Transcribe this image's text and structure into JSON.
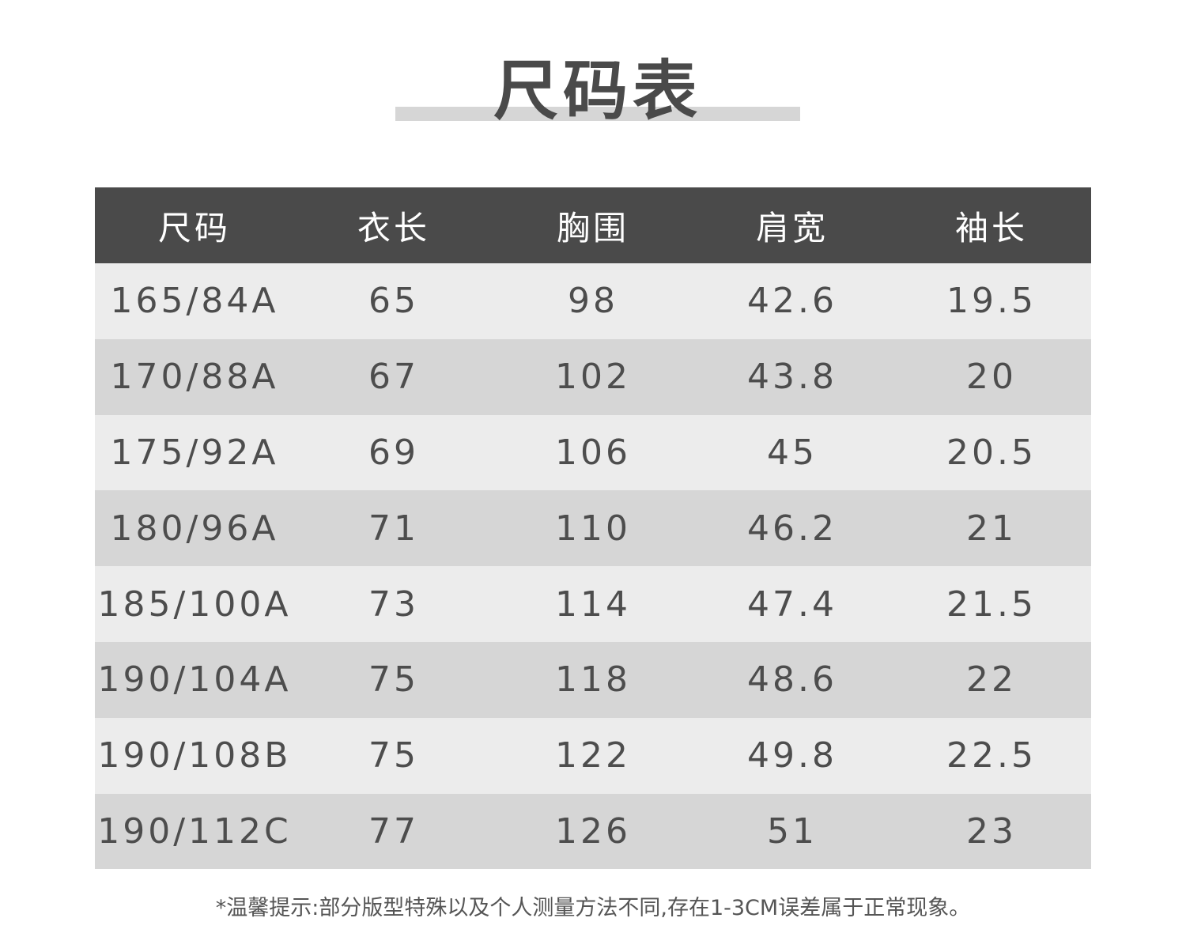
{
  "title": "尺码表",
  "table": {
    "headers": [
      "尺码",
      "衣长",
      "胸围",
      "肩宽",
      "袖长"
    ],
    "rows": [
      [
        "165/84A",
        "65",
        "98",
        "42.6",
        "19.5"
      ],
      [
        "170/88A",
        "67",
        "102",
        "43.8",
        "20"
      ],
      [
        "175/92A",
        "69",
        "106",
        "45",
        "20.5"
      ],
      [
        "180/96A",
        "71",
        "110",
        "46.2",
        "21"
      ],
      [
        "185/100A",
        "73",
        "114",
        "47.4",
        "21.5"
      ],
      [
        "190/104A",
        "75",
        "118",
        "48.6",
        "22"
      ],
      [
        "190/108B",
        "75",
        "122",
        "49.8",
        "22.5"
      ],
      [
        "190/112C",
        "77",
        "126",
        "51",
        "23"
      ]
    ]
  },
  "note": "*温馨提示:部分版型特殊以及个人测量方法不同,存在1-3CM误差属于正常现象。",
  "colors": {
    "header_bg": "#4a4a4a",
    "row_light": "#ececec",
    "row_dark": "#d6d6d6",
    "text": "#4d4d4d"
  }
}
